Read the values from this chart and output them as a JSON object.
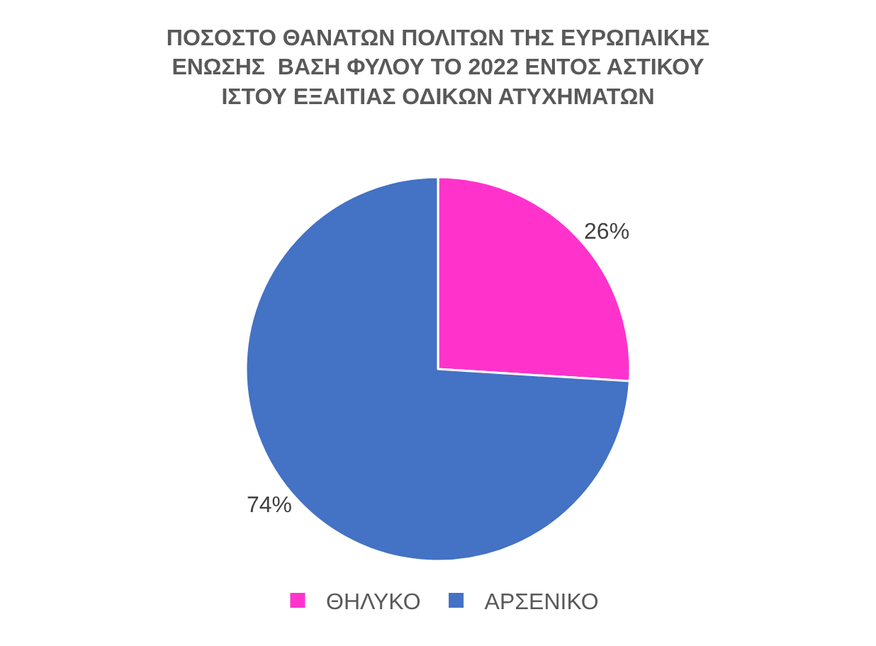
{
  "chart_data": {
    "type": "pie",
    "title": "ΠΟΣΟΣΤΟ ΘΑΝΑΤΩΝ ΠΟΛΙΤΩΝ ΤΗΣ ΕΥΡΩΠΑΙΚΗΣ ΕΝΩΣΗΣ  ΒΑΣΗ ΦΥΛΟΥ ΤΟ 2022 ΕΝΤΟΣ ΑΣΤΙΚΟΥ ΙΣΤΟΥ ΕΞΑΙΤΙΑΣ ΟΔΙΚΩΝ ΑΤΥΧΗΜΑΤΩΝ",
    "categories": [
      "ΘΗΛΥΚΟ",
      "ΑΡΣΕΝΙΚΟ"
    ],
    "values": [
      26,
      74
    ],
    "colors": [
      "#ff33cc",
      "#4472c4"
    ],
    "value_labels": [
      "26%",
      "74%"
    ],
    "legend": "bottom"
  }
}
